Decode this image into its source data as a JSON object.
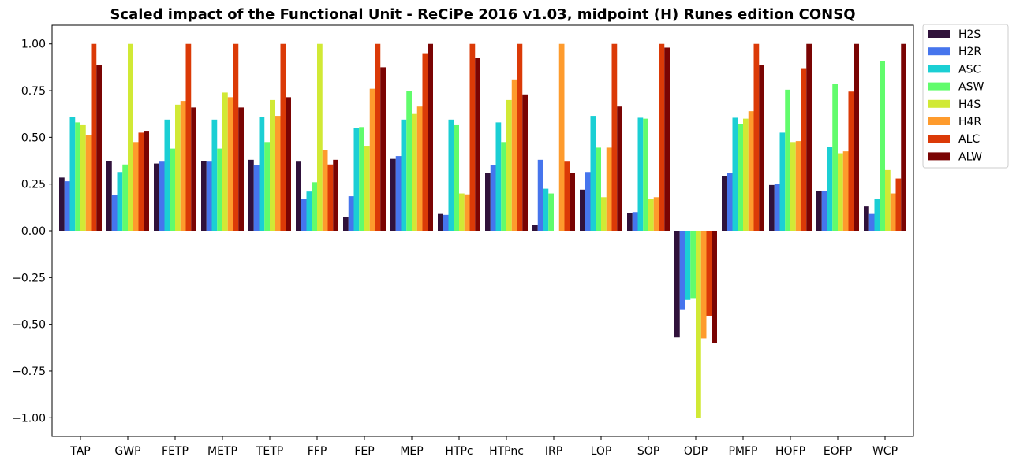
{
  "chart_data": {
    "type": "bar",
    "title": "Scaled impact of the Functional Unit - ReCiPe 2016 v1.03, midpoint (H) Runes edition CONSQ",
    "xlabel": "",
    "ylabel": "",
    "ylim": [
      -1.1,
      1.1
    ],
    "yticks": [
      -1.0,
      -0.75,
      -0.5,
      -0.25,
      0.0,
      0.25,
      0.5,
      0.75,
      1.0
    ],
    "ytick_labels": [
      "−1.00",
      "−0.75",
      "−0.50",
      "−0.25",
      "0.00",
      "0.25",
      "0.50",
      "0.75",
      "1.00"
    ],
    "grid": false,
    "legend_position": "outside-top-right",
    "categories": [
      "TAP",
      "GWP",
      "FETP",
      "METP",
      "TETP",
      "FFP",
      "FEP",
      "MEP",
      "HTPc",
      "HTPnc",
      "IRP",
      "LOP",
      "SOP",
      "ODP",
      "PMFP",
      "HOFP",
      "EOFP",
      "WCP"
    ],
    "series": [
      {
        "name": "H2S",
        "color": "#30123b",
        "values": [
          0.285,
          0.375,
          0.36,
          0.375,
          0.38,
          0.37,
          0.075,
          0.385,
          0.09,
          0.31,
          0.03,
          0.22,
          0.095,
          -0.57,
          0.295,
          0.245,
          0.215,
          0.13
        ]
      },
      {
        "name": "H2R",
        "color": "#4675ed",
        "values": [
          0.265,
          0.19,
          0.37,
          0.37,
          0.35,
          0.17,
          0.185,
          0.4,
          0.085,
          0.35,
          0.38,
          0.315,
          0.1,
          -0.42,
          0.31,
          0.25,
          0.215,
          0.09
        ]
      },
      {
        "name": "ASC",
        "color": "#1bcfd4",
        "values": [
          0.61,
          0.315,
          0.595,
          0.595,
          0.61,
          0.21,
          0.55,
          0.595,
          0.595,
          0.58,
          0.225,
          0.615,
          0.605,
          -0.37,
          0.605,
          0.525,
          0.45,
          0.17
        ]
      },
      {
        "name": "ASW",
        "color": "#61fc6c",
        "values": [
          0.58,
          0.355,
          0.44,
          0.44,
          0.475,
          0.26,
          0.555,
          0.75,
          0.565,
          0.475,
          0.2,
          0.445,
          0.6,
          -0.36,
          0.57,
          0.755,
          0.785,
          0.91
        ]
      },
      {
        "name": "H4S",
        "color": "#d1e935",
        "values": [
          0.565,
          1.0,
          0.675,
          0.74,
          0.7,
          1.0,
          0.455,
          0.625,
          0.2,
          0.7,
          0.0,
          0.18,
          0.17,
          -1.0,
          0.6,
          0.475,
          0.415,
          0.325
        ]
      },
      {
        "name": "H4R",
        "color": "#fe9b2d",
        "values": [
          0.51,
          0.475,
          0.695,
          0.715,
          0.615,
          0.43,
          0.76,
          0.665,
          0.195,
          0.81,
          1.0,
          0.445,
          0.18,
          -0.575,
          0.64,
          0.48,
          0.425,
          0.2
        ]
      },
      {
        "name": "ALC",
        "color": "#db3a07",
        "values": [
          1.0,
          0.525,
          1.0,
          1.0,
          1.0,
          0.355,
          1.0,
          0.95,
          1.0,
          1.0,
          0.37,
          1.0,
          1.0,
          -0.455,
          1.0,
          0.87,
          0.745,
          0.28
        ]
      },
      {
        "name": "ALW",
        "color": "#7a0403",
        "values": [
          0.885,
          0.535,
          0.66,
          0.66,
          0.715,
          0.38,
          0.875,
          1.0,
          0.925,
          0.73,
          0.31,
          0.665,
          0.98,
          -0.6,
          0.885,
          1.0,
          1.0,
          1.0
        ]
      }
    ]
  }
}
